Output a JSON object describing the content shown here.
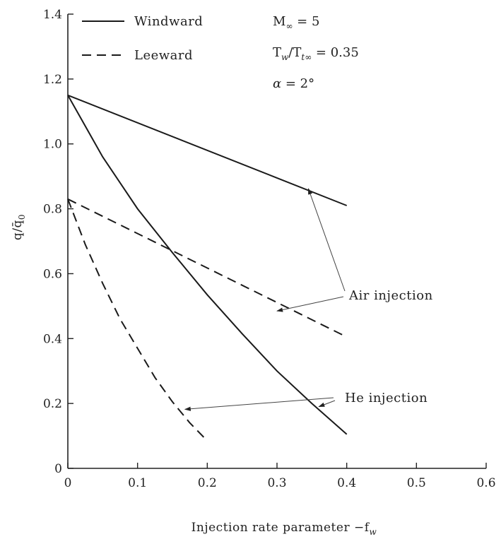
{
  "chart_data": {
    "type": "line",
    "xlabel": "Injection rate parameter −f",
    "xlabel_subscript": "w",
    "ylabel": "q/q̄",
    "ylabel_subscript": "0",
    "xlim": [
      0,
      0.6
    ],
    "ylim": [
      0,
      1.4
    ],
    "xticks": [
      0,
      0.1,
      0.2,
      0.3,
      0.4,
      0.5,
      0.6
    ],
    "xtick_labels": [
      "0",
      "0.1",
      "0.2",
      "0.3",
      "0.4",
      "0.5",
      "0.6"
    ],
    "yticks": [
      0,
      0.2,
      0.4,
      0.6,
      0.8,
      1.0,
      1.2,
      1.4
    ],
    "ytick_labels": [
      "0",
      "0.2",
      "0.4",
      "0.6",
      "0.8",
      "1.0",
      "1.2",
      "1.4"
    ],
    "grid": false,
    "legend": {
      "placement": "top-left",
      "entries": [
        {
          "label": "Windward",
          "style": "solid"
        },
        {
          "label": "Leeward",
          "style": "dashed"
        }
      ]
    },
    "parameters": [
      {
        "base": "M",
        "sub": "∞",
        "rest": " = 5"
      },
      {
        "base": "T",
        "sub": "w",
        "mid": "/T",
        "sub2": "t∞",
        "rest": " = 0.35"
      },
      {
        "base": "α",
        "sub": "",
        "rest": " = 2°"
      }
    ],
    "series": [
      {
        "group": "Air injection",
        "side": "windward",
        "style": "solid",
        "x": [
          0,
          0.4
        ],
        "y": [
          1.15,
          0.81
        ]
      },
      {
        "group": "Air injection",
        "side": "leeward",
        "style": "dashed",
        "x": [
          0,
          0.4
        ],
        "y": [
          0.83,
          0.405
        ]
      },
      {
        "group": "He injection",
        "side": "windward",
        "style": "solid",
        "x": [
          0,
          0.05,
          0.1,
          0.15,
          0.2,
          0.25,
          0.3,
          0.35,
          0.4
        ],
        "y": [
          1.15,
          0.96,
          0.8,
          0.665,
          0.535,
          0.415,
          0.3,
          0.2,
          0.105
        ]
      },
      {
        "group": "He injection",
        "side": "leeward",
        "style": "dashed",
        "x": [
          0,
          0.025,
          0.05,
          0.075,
          0.1,
          0.125,
          0.15,
          0.175,
          0.2
        ],
        "y": [
          0.83,
          0.69,
          0.57,
          0.46,
          0.37,
          0.28,
          0.205,
          0.14,
          0.085
        ]
      }
    ],
    "annotations": [
      {
        "text": "Air injection",
        "targets": [
          [
            0.345,
            0.862
          ],
          [
            0.3,
            0.485
          ]
        ]
      },
      {
        "text": "He injection",
        "targets": [
          [
            0.168,
            0.182
          ],
          [
            0.36,
            0.19
          ]
        ]
      }
    ]
  }
}
